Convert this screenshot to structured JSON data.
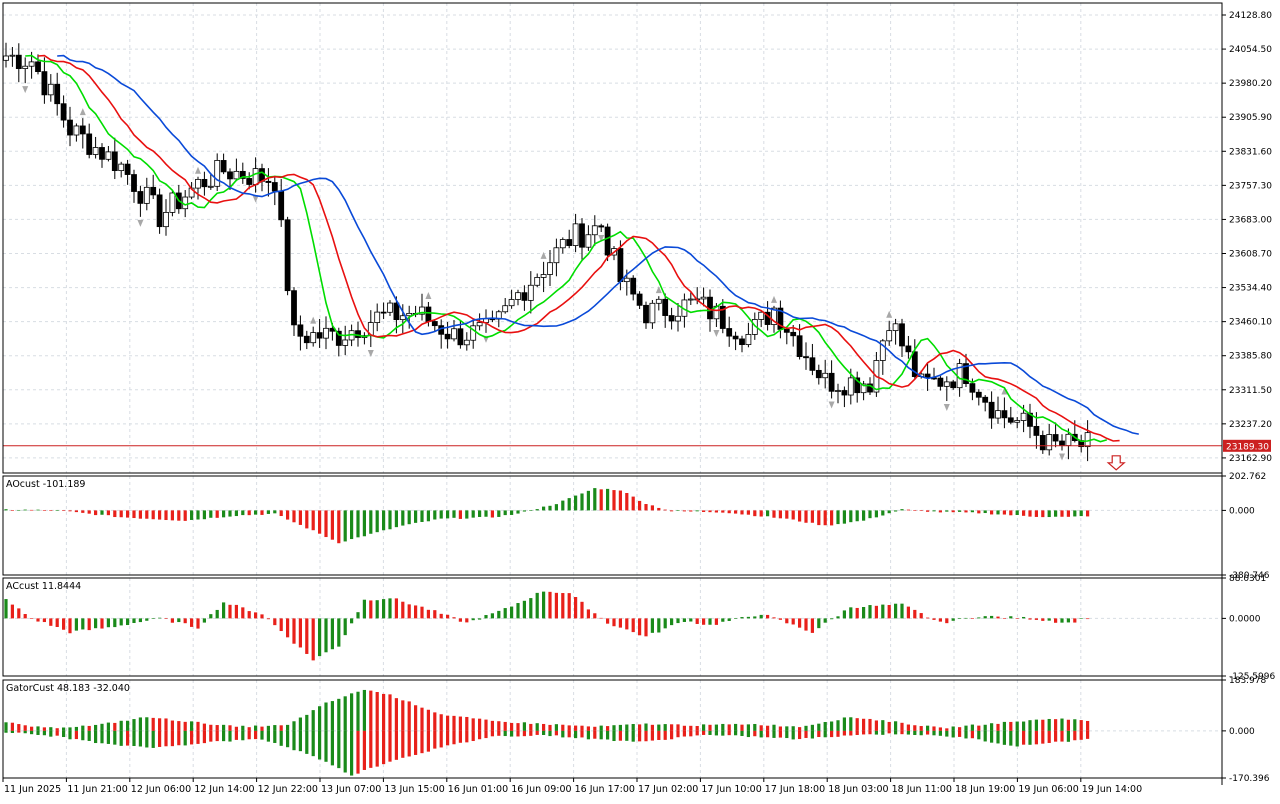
{
  "colors": {
    "bull": "#1a8a1a",
    "bear": "#e8201a",
    "ma_fast": "#00dd00",
    "ma_mid": "#e81010",
    "ma_slow": "#0a4ad8",
    "price_line": "#cc2020",
    "grid": "#d8dde3",
    "fractal": "#a8a8a8"
  },
  "chart_data": [
    {
      "type": "candlestick",
      "title": "",
      "ylim": [
        23130,
        24155
      ],
      "y_ticks": [
        "24128.80",
        "24054.50",
        "23980.20",
        "23905.90",
        "23831.60",
        "23757.30",
        "23683.00",
        "23608.70",
        "23534.40",
        "23460.10",
        "23385.80",
        "23311.50",
        "23237.20",
        "23162.90"
      ],
      "current_price": "23189.30",
      "signal": "sell-arrow",
      "ma_series": [
        "fast",
        "mid",
        "slow"
      ],
      "grid": true
    },
    {
      "type": "bar",
      "label": "AOcust -101.189",
      "ylim": [
        -380.746,
        202.762
      ],
      "y_ticks": [
        "202.762",
        "0.000",
        "-380.746"
      ]
    },
    {
      "type": "bar",
      "label": "ACcust 11.8444",
      "ylim": [
        -125.5996,
        88.0301
      ],
      "y_ticks": [
        "88.0301",
        "0.0000",
        "-125.5996"
      ]
    },
    {
      "type": "bar",
      "label": "GatorCust 48.183 -32.040",
      "ylim": [
        -170.396,
        183.978
      ],
      "y_ticks": [
        "183.978",
        "0.000",
        "-170.396"
      ]
    }
  ],
  "time_axis": [
    "11 Jun 2025",
    "11 Jun 21:00",
    "12 Jun 06:00",
    "12 Jun 14:00",
    "12 Jun 22:00",
    "13 Jun 07:00",
    "13 Jun 15:00",
    "16 Jun 01:00",
    "16 Jun 09:00",
    "16 Jun 17:00",
    "17 Jun 02:00",
    "17 Jun 10:00",
    "17 Jun 18:00",
    "18 Jun 03:00",
    "18 Jun 11:00",
    "18 Jun 19:00",
    "19 Jun 06:00",
    "19 Jun 14:00"
  ]
}
